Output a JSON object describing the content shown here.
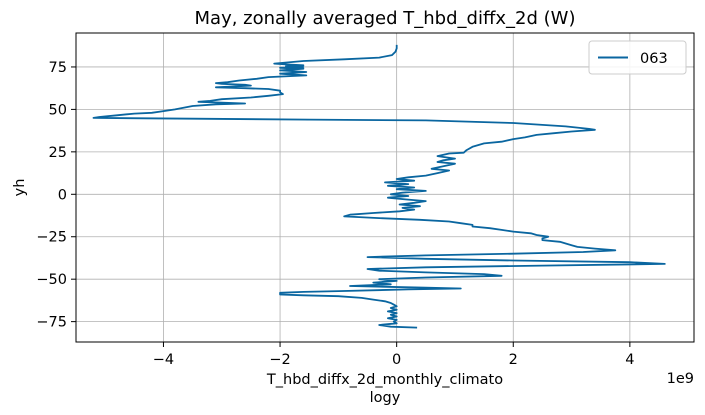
{
  "chart_data": {
    "type": "line",
    "title": "May, zonally averaged T_hbd_diffx_2d (W)",
    "xlabel_line1": "T_hbd_diffx_2d_monthly_climato",
    "xlabel_line2": "logy",
    "ylabel": "yh",
    "x_offset_label": "1e9",
    "xlim": [
      -5.5,
      5.1
    ],
    "ylim": [
      -87,
      95
    ],
    "x_ticks": [
      -4,
      -2,
      0,
      2,
      4
    ],
    "x_tick_labels": [
      "−4",
      "−2",
      "0",
      "2",
      "4"
    ],
    "y_ticks": [
      -75,
      -50,
      -25,
      0,
      25,
      50,
      75
    ],
    "y_tick_labels": [
      "−75",
      "−50",
      "−25",
      "0",
      "25",
      "50",
      "75"
    ],
    "grid": true,
    "legend": {
      "position": "top-right",
      "entries": [
        "063"
      ]
    },
    "series": [
      {
        "name": "063",
        "color": "#0a66a0",
        "points": [
          [
            0.0,
            88
          ],
          [
            0.0,
            86
          ],
          [
            -0.02,
            84
          ],
          [
            -0.08,
            82
          ],
          [
            -0.3,
            80.5
          ],
          [
            -0.9,
            79.5
          ],
          [
            -1.6,
            78.5
          ],
          [
            -2.1,
            77
          ],
          [
            -1.9,
            76.5
          ],
          [
            -1.6,
            76
          ],
          [
            -1.9,
            75.5
          ],
          [
            -1.6,
            75
          ],
          [
            -2.0,
            74.5
          ],
          [
            -1.6,
            74
          ],
          [
            -2.0,
            73
          ],
          [
            -1.55,
            72
          ],
          [
            -2.0,
            71
          ],
          [
            -1.55,
            70
          ],
          [
            -2.2,
            69
          ],
          [
            -2.4,
            68
          ],
          [
            -2.7,
            67
          ],
          [
            -2.9,
            66
          ],
          [
            -3.1,
            65.5
          ],
          [
            -3.0,
            65
          ],
          [
            -2.6,
            64.5
          ],
          [
            -2.5,
            64
          ],
          [
            -2.8,
            63.5
          ],
          [
            -3.1,
            63
          ],
          [
            -2.6,
            62.5
          ],
          [
            -2.2,
            62
          ],
          [
            -2.0,
            61
          ],
          [
            -2.0,
            60
          ],
          [
            -1.95,
            59
          ],
          [
            -2.2,
            58
          ],
          [
            -2.5,
            57
          ],
          [
            -3.0,
            56
          ],
          [
            -3.2,
            55
          ],
          [
            -3.4,
            54.5
          ],
          [
            -3.0,
            54
          ],
          [
            -2.6,
            53.5
          ],
          [
            -3.1,
            53
          ],
          [
            -3.5,
            52
          ],
          [
            -3.8,
            50
          ],
          [
            -4.0,
            49
          ],
          [
            -4.2,
            48
          ],
          [
            -4.5,
            47.5
          ],
          [
            -4.8,
            46.5
          ],
          [
            -5.1,
            45.5
          ],
          [
            -5.2,
            45
          ],
          [
            -3.5,
            44.5
          ],
          [
            -1.5,
            44
          ],
          [
            0.5,
            43.5
          ],
          [
            2.0,
            42
          ],
          [
            2.9,
            40
          ],
          [
            3.3,
            38.5
          ],
          [
            3.4,
            38
          ],
          [
            3.0,
            37
          ],
          [
            2.7,
            36
          ],
          [
            2.4,
            35
          ],
          [
            2.2,
            33.5
          ],
          [
            2.0,
            32.5
          ],
          [
            1.8,
            31
          ],
          [
            1.5,
            30
          ],
          [
            1.3,
            28
          ],
          [
            1.2,
            26
          ],
          [
            1.15,
            24.5
          ],
          [
            0.9,
            24
          ],
          [
            0.7,
            22.5
          ],
          [
            1.0,
            21
          ],
          [
            0.8,
            20
          ],
          [
            0.7,
            19
          ],
          [
            1.0,
            18
          ],
          [
            0.8,
            16.5
          ],
          [
            0.6,
            15
          ],
          [
            0.9,
            14
          ],
          [
            0.7,
            12.5
          ],
          [
            0.5,
            11
          ],
          [
            0.2,
            10
          ],
          [
            0.0,
            9
          ],
          [
            0.3,
            8
          ],
          [
            -0.2,
            7
          ],
          [
            0.2,
            6
          ],
          [
            -0.15,
            5
          ],
          [
            0.3,
            4
          ],
          [
            0.0,
            3
          ],
          [
            0.5,
            2
          ],
          [
            0.1,
            1
          ],
          [
            -0.1,
            0
          ],
          [
            0.2,
            -1
          ],
          [
            -0.15,
            -2
          ],
          [
            0.15,
            -3
          ],
          [
            0.5,
            -4
          ],
          [
            0.3,
            -5
          ],
          [
            0.05,
            -6
          ],
          [
            0.4,
            -7
          ],
          [
            0.1,
            -8
          ],
          [
            0.3,
            -9
          ],
          [
            0.05,
            -10
          ],
          [
            -0.4,
            -11
          ],
          [
            -0.8,
            -12
          ],
          [
            -0.9,
            -13
          ],
          [
            -0.3,
            -14
          ],
          [
            0.4,
            -15
          ],
          [
            0.9,
            -16
          ],
          [
            1.1,
            -17
          ],
          [
            1.3,
            -18
          ],
          [
            1.3,
            -19
          ],
          [
            1.6,
            -20
          ],
          [
            1.8,
            -21
          ],
          [
            2.0,
            -22
          ],
          [
            2.3,
            -23
          ],
          [
            2.4,
            -24
          ],
          [
            2.6,
            -25
          ],
          [
            2.5,
            -26
          ],
          [
            2.5,
            -27
          ],
          [
            2.8,
            -28
          ],
          [
            2.9,
            -29
          ],
          [
            3.0,
            -30
          ],
          [
            3.1,
            -31
          ],
          [
            3.4,
            -32
          ],
          [
            3.75,
            -33
          ],
          [
            3.2,
            -34
          ],
          [
            2.0,
            -35
          ],
          [
            0.5,
            -36
          ],
          [
            -0.5,
            -37
          ],
          [
            0.5,
            -38
          ],
          [
            2.0,
            -39
          ],
          [
            4.0,
            -40
          ],
          [
            4.6,
            -41
          ],
          [
            2.5,
            -42
          ],
          [
            0.5,
            -43
          ],
          [
            -0.5,
            -44
          ],
          [
            -0.3,
            -45
          ],
          [
            0.5,
            -46
          ],
          [
            1.5,
            -47
          ],
          [
            1.8,
            -48
          ],
          [
            0.5,
            -49
          ],
          [
            -0.3,
            -50
          ],
          [
            0.0,
            -51
          ],
          [
            -0.4,
            -52
          ],
          [
            -0.1,
            -53
          ],
          [
            -0.8,
            -54
          ],
          [
            0.5,
            -55
          ],
          [
            1.1,
            -55.5
          ],
          [
            0.2,
            -56
          ],
          [
            -1.0,
            -57
          ],
          [
            -1.6,
            -57.5
          ],
          [
            -2.0,
            -58
          ],
          [
            -2.0,
            -59
          ],
          [
            -1.6,
            -59.5
          ],
          [
            -1.0,
            -60
          ],
          [
            -0.6,
            -61
          ],
          [
            -0.4,
            -62
          ],
          [
            -0.2,
            -63
          ],
          [
            -0.1,
            -64
          ],
          [
            -0.05,
            -65
          ],
          [
            0.0,
            -66
          ],
          [
            -0.1,
            -67
          ],
          [
            0.0,
            -68
          ],
          [
            -0.15,
            -69
          ],
          [
            0.0,
            -70
          ],
          [
            -0.1,
            -71
          ],
          [
            0.0,
            -72
          ],
          [
            -0.15,
            -73
          ],
          [
            0.0,
            -74
          ],
          [
            -0.05,
            -75
          ],
          [
            0.0,
            -76
          ],
          [
            -0.3,
            -77
          ],
          [
            -0.1,
            -78
          ],
          [
            0.35,
            -78.5
          ]
        ]
      }
    ]
  }
}
